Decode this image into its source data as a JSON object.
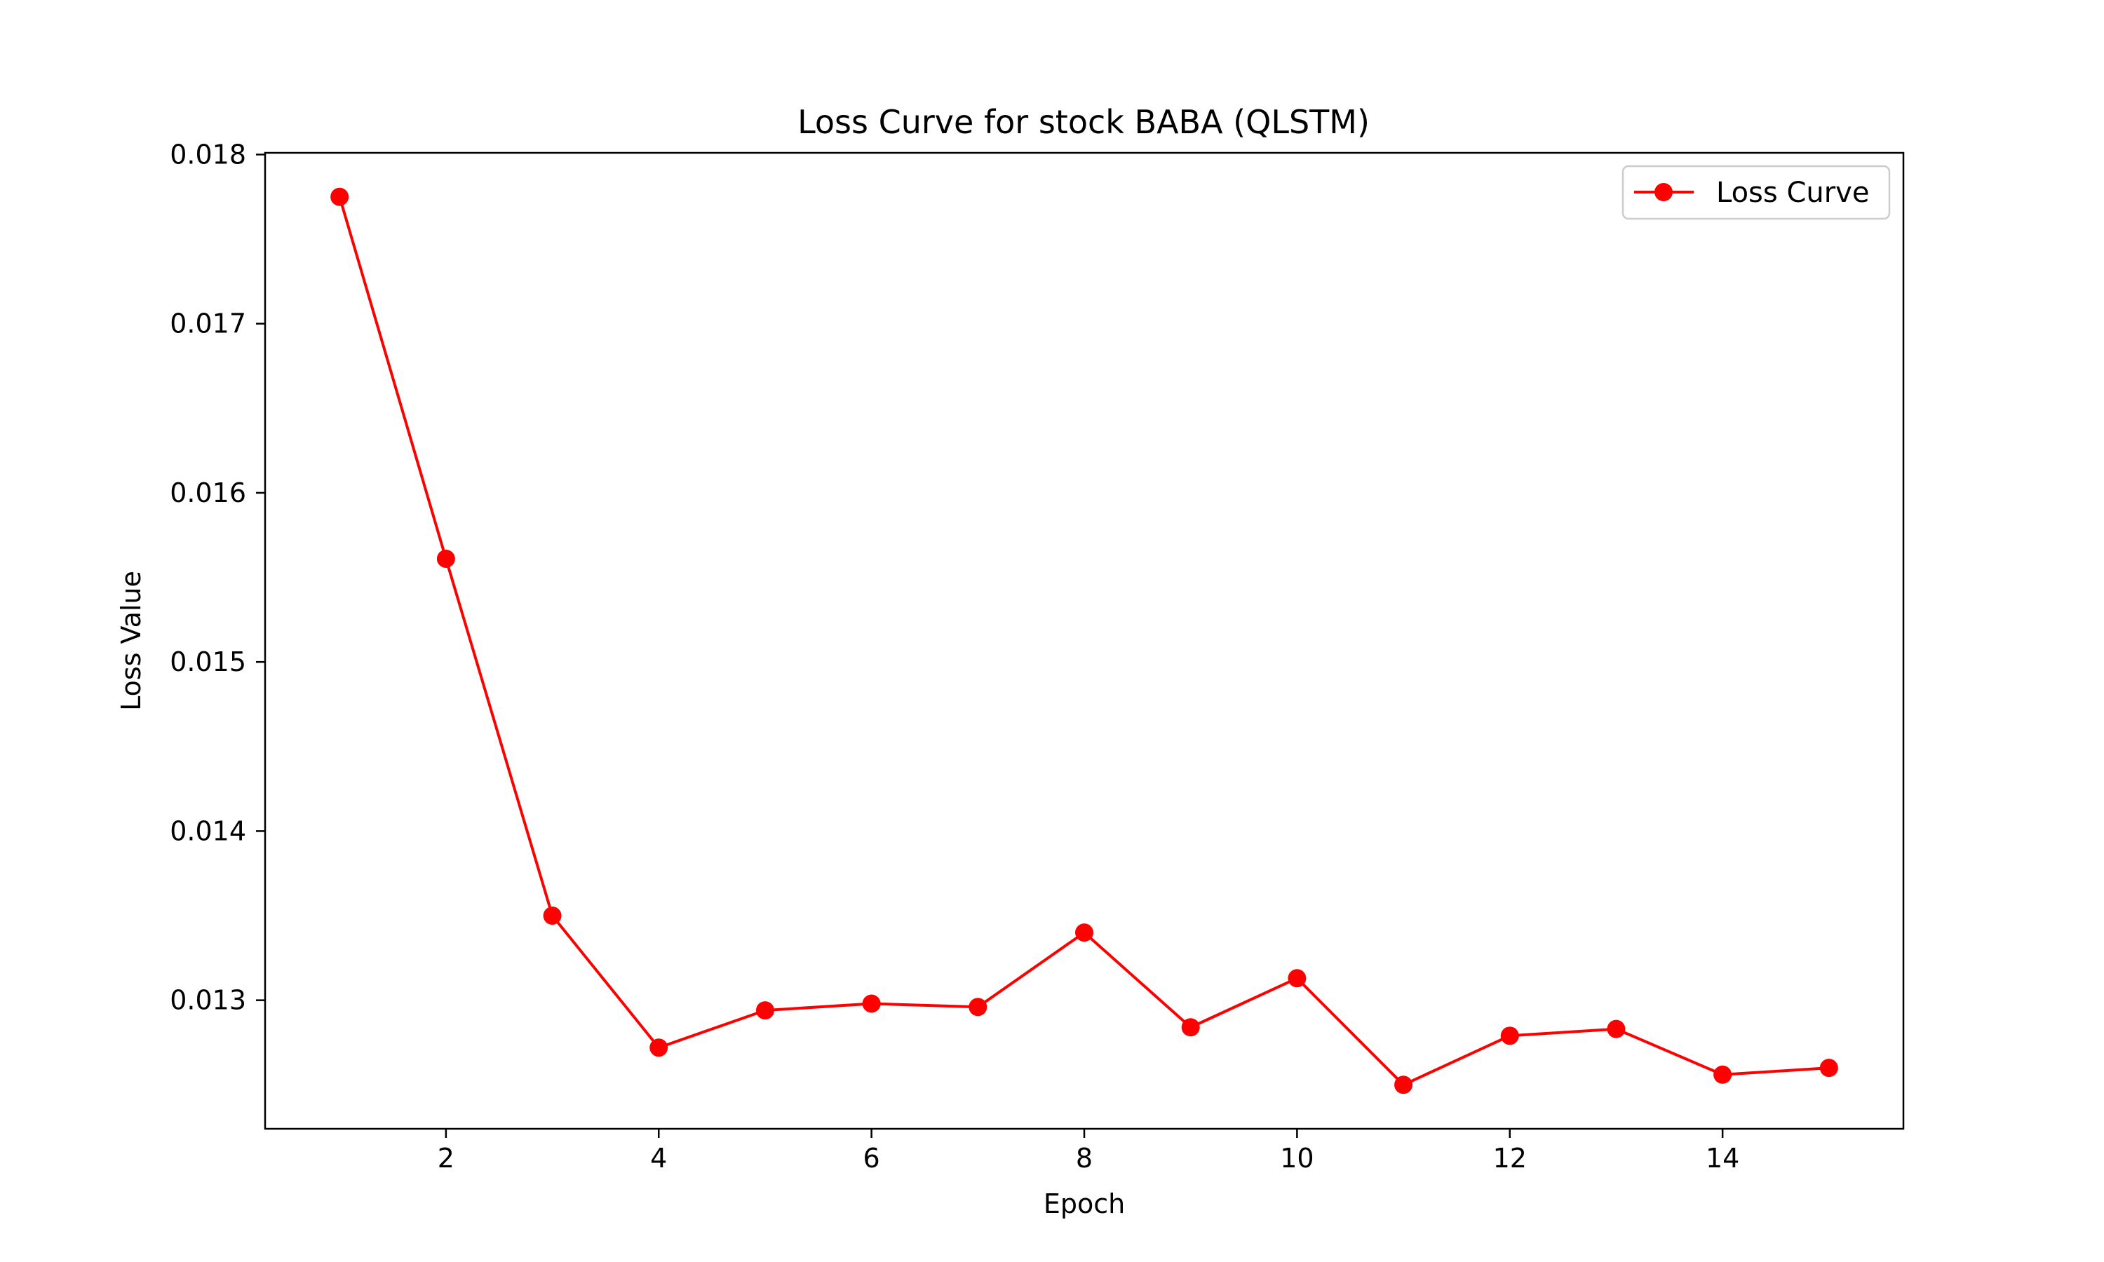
{
  "chart_data": {
    "type": "line",
    "title": "Loss Curve for stock BABA (QLSTM)",
    "xlabel": "Epoch",
    "ylabel": "Loss Value",
    "xlim": [
      0.3,
      15.7
    ],
    "ylim": [
      0.01224,
      0.01801
    ],
    "xticks": [
      2,
      4,
      6,
      8,
      10,
      12,
      14
    ],
    "xtick_labels": [
      "2",
      "4",
      "6",
      "8",
      "10",
      "12",
      "14"
    ],
    "yticks": [
      0.013,
      0.014,
      0.015,
      0.016,
      0.017,
      0.018
    ],
    "ytick_labels": [
      "0.013",
      "0.014",
      "0.015",
      "0.016",
      "0.017",
      "0.018"
    ],
    "grid": false,
    "legend": {
      "placement": "top-right",
      "entries": [
        "Loss Curve"
      ]
    },
    "series": [
      {
        "name": "Loss Curve",
        "color": "#ff0000",
        "marker": "circle",
        "x": [
          1,
          2,
          3,
          4,
          5,
          6,
          7,
          8,
          9,
          10,
          11,
          12,
          13,
          14,
          15
        ],
        "y": [
          0.01775,
          0.01561,
          0.0135,
          0.01272,
          0.01294,
          0.01298,
          0.01296,
          0.0134,
          0.01284,
          0.01313,
          0.0125,
          0.01279,
          0.01283,
          0.01256,
          0.0126
        ]
      }
    ]
  }
}
